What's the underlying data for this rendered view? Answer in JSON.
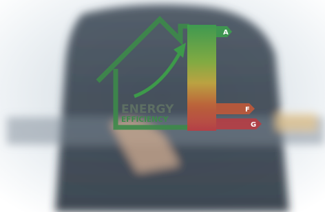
{
  "headline": [
    "ENERGY",
    "EFFICIENCY"
  ],
  "rating_labels": [
    "A",
    "F",
    "G"
  ]
}
